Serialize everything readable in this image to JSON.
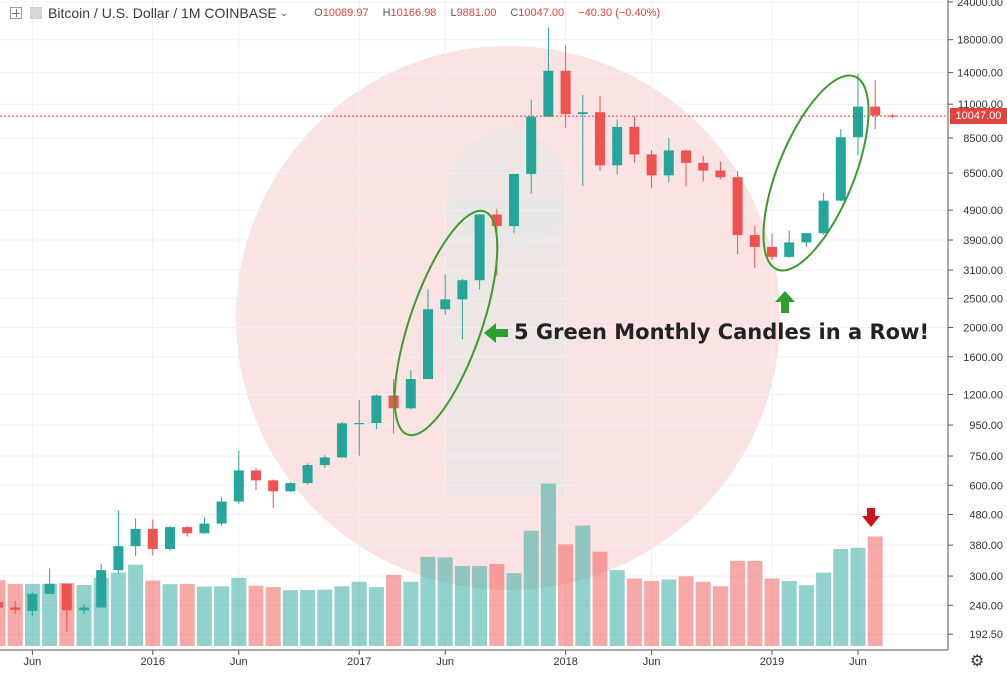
{
  "header": {
    "symbol": "Bitcoin / U.S. Dollar",
    "interval": "1M",
    "exchange": "COINBASE",
    "separator": "/",
    "o_label": "O",
    "o_value": "10089.97",
    "h_label": "H",
    "h_value": "10166.98",
    "l_label": "L",
    "l_value": "9881.00",
    "c_label": "C",
    "c_value": "10047.00",
    "change": "−40.30 (−0.40%)"
  },
  "annotation": "5 Green Monthly Candles in a Row!",
  "last_price_label": "10047.00",
  "colors": {
    "up": "#26a69a",
    "down": "#ef5350",
    "accent_green": "#2e9e2e",
    "arrow_red": "#d0141f",
    "last_price": "#e0443f"
  },
  "icons": {
    "crosshair": "plus-icon",
    "settings": "gear-icon",
    "chevron": "chevron-down-icon"
  },
  "chart_data": {
    "type": "candlestick",
    "title": "Bitcoin / U.S. Dollar  1M  COINBASE",
    "y_scale": "log",
    "ylim": [
      180,
      24000
    ],
    "grid": true,
    "y_ticks": [
      192.5,
      240,
      300,
      380,
      480,
      600,
      750,
      950,
      1200,
      1600,
      2000,
      2500,
      3100,
      3900,
      4900,
      6500,
      8500,
      11000,
      14000,
      18000,
      24000
    ],
    "y_tick_labels": [
      "192.50",
      "240.00",
      "300.00",
      "380.00",
      "480.00",
      "600.00",
      "750.00",
      "950.00",
      "1200.00",
      "1600.00",
      "2000.00",
      "2500.00",
      "3100.00",
      "3900.00",
      "4900.00",
      "6500.00",
      "8500.00",
      "11000.00",
      "14000.00",
      "18000.00",
      "24000.00"
    ],
    "x_ticks": [
      {
        "label": "Jun",
        "month": "2015-06"
      },
      {
        "label": "2016",
        "month": "2016-01"
      },
      {
        "label": "Jun",
        "month": "2016-06"
      },
      {
        "label": "2017",
        "month": "2017-01"
      },
      {
        "label": "Jun",
        "month": "2017-06"
      },
      {
        "label": "2018",
        "month": "2018-01"
      },
      {
        "label": "Jun",
        "month": "2018-06"
      },
      {
        "label": "2019",
        "month": "2019-01"
      },
      {
        "label": "Jun",
        "month": "2019-06"
      }
    ],
    "candles": [
      {
        "month": "2015-04",
        "o": 246,
        "h": 262,
        "l": 218,
        "c": 236,
        "vol": 251
      },
      {
        "month": "2015-05",
        "o": 236,
        "h": 248,
        "l": 225,
        "c": 232,
        "vol": 237
      },
      {
        "month": "2015-06",
        "o": 230,
        "h": 265,
        "l": 221,
        "c": 262,
        "vol": 237
      },
      {
        "month": "2015-07",
        "o": 262,
        "h": 318,
        "l": 262,
        "c": 283,
        "vol": 236
      },
      {
        "month": "2015-08",
        "o": 283,
        "h": 284,
        "l": 196,
        "c": 231,
        "vol": 240
      },
      {
        "month": "2015-09",
        "o": 231,
        "h": 242,
        "l": 224,
        "c": 236,
        "vol": 233
      },
      {
        "month": "2015-10",
        "o": 236,
        "h": 330,
        "l": 236,
        "c": 314,
        "vol": 260
      },
      {
        "month": "2015-11",
        "o": 314,
        "h": 495,
        "l": 306,
        "c": 377,
        "vol": 280
      },
      {
        "month": "2015-12",
        "o": 377,
        "h": 466,
        "l": 350,
        "c": 430,
        "vol": 310
      },
      {
        "month": "2016-01",
        "o": 430,
        "h": 462,
        "l": 351,
        "c": 369,
        "vol": 250
      },
      {
        "month": "2016-02",
        "o": 369,
        "h": 440,
        "l": 365,
        "c": 436,
        "vol": 236
      },
      {
        "month": "2016-03",
        "o": 436,
        "h": 439,
        "l": 406,
        "c": 416,
        "vol": 237
      },
      {
        "month": "2016-04",
        "o": 416,
        "h": 470,
        "l": 414,
        "c": 448,
        "vol": 227
      },
      {
        "month": "2016-05",
        "o": 448,
        "h": 550,
        "l": 440,
        "c": 530,
        "vol": 228
      },
      {
        "month": "2016-06",
        "o": 530,
        "h": 780,
        "l": 520,
        "c": 672,
        "vol": 260
      },
      {
        "month": "2016-07",
        "o": 672,
        "h": 684,
        "l": 580,
        "c": 623,
        "vol": 230
      },
      {
        "month": "2016-08",
        "o": 623,
        "h": 627,
        "l": 505,
        "c": 573,
        "vol": 225
      },
      {
        "month": "2016-09",
        "o": 573,
        "h": 616,
        "l": 570,
        "c": 610,
        "vol": 213
      },
      {
        "month": "2016-10",
        "o": 610,
        "h": 710,
        "l": 603,
        "c": 700,
        "vol": 214
      },
      {
        "month": "2016-11",
        "o": 700,
        "h": 755,
        "l": 685,
        "c": 742,
        "vol": 215
      },
      {
        "month": "2016-12",
        "o": 742,
        "h": 973,
        "l": 742,
        "c": 963,
        "vol": 228
      },
      {
        "month": "2017-01",
        "o": 963,
        "h": 1150,
        "l": 752,
        "c": 965,
        "vol": 245
      },
      {
        "month": "2017-02",
        "o": 965,
        "h": 1200,
        "l": 920,
        "c": 1190,
        "vol": 225
      },
      {
        "month": "2017-03",
        "o": 1190,
        "h": 1350,
        "l": 890,
        "c": 1080,
        "vol": 272
      },
      {
        "month": "2017-04",
        "o": 1080,
        "h": 1445,
        "l": 1070,
        "c": 1350,
        "vol": 245
      },
      {
        "month": "2017-05",
        "o": 1350,
        "h": 2680,
        "l": 1350,
        "c": 2300,
        "vol": 340
      },
      {
        "month": "2017-06",
        "o": 2300,
        "h": 3000,
        "l": 2200,
        "c": 2480,
        "vol": 338
      },
      {
        "month": "2017-07",
        "o": 2480,
        "h": 2900,
        "l": 1830,
        "c": 2870,
        "vol": 305
      },
      {
        "month": "2017-08",
        "o": 2870,
        "h": 4750,
        "l": 2680,
        "c": 4740,
        "vol": 305
      },
      {
        "month": "2017-09",
        "o": 4740,
        "h": 4950,
        "l": 2970,
        "c": 4340,
        "vol": 313
      },
      {
        "month": "2017-10",
        "o": 4340,
        "h": 6470,
        "l": 4120,
        "c": 6460,
        "vol": 278
      },
      {
        "month": "2017-11",
        "o": 6460,
        "h": 11400,
        "l": 5550,
        "c": 10000,
        "vol": 440
      },
      {
        "month": "2017-12",
        "o": 10000,
        "h": 19800,
        "l": 10000,
        "c": 14200,
        "vol": 620
      },
      {
        "month": "2018-01",
        "o": 14200,
        "h": 17200,
        "l": 9200,
        "c": 10200,
        "vol": 388
      },
      {
        "month": "2018-02",
        "o": 10200,
        "h": 11800,
        "l": 5900,
        "c": 10350,
        "vol": 460
      },
      {
        "month": "2018-03",
        "o": 10350,
        "h": 11700,
        "l": 6600,
        "c": 6900,
        "vol": 360
      },
      {
        "month": "2018-04",
        "o": 6900,
        "h": 9800,
        "l": 6430,
        "c": 9250,
        "vol": 290
      },
      {
        "month": "2018-05",
        "o": 9250,
        "h": 10000,
        "l": 7050,
        "c": 7500,
        "vol": 258
      },
      {
        "month": "2018-06",
        "o": 7500,
        "h": 7760,
        "l": 5800,
        "c": 6390,
        "vol": 248
      },
      {
        "month": "2018-07",
        "o": 6390,
        "h": 8500,
        "l": 6050,
        "c": 7730,
        "vol": 254
      },
      {
        "month": "2018-08",
        "o": 7730,
        "h": 7760,
        "l": 5880,
        "c": 7030,
        "vol": 266
      },
      {
        "month": "2018-09",
        "o": 7030,
        "h": 7420,
        "l": 6100,
        "c": 6630,
        "vol": 245
      },
      {
        "month": "2018-10",
        "o": 6630,
        "h": 7100,
        "l": 6200,
        "c": 6300,
        "vol": 228
      },
      {
        "month": "2018-11",
        "o": 6300,
        "h": 6600,
        "l": 3500,
        "c": 4050,
        "vol": 325
      },
      {
        "month": "2018-12",
        "o": 4050,
        "h": 4350,
        "l": 3150,
        "c": 3700,
        "vol": 325
      },
      {
        "month": "2019-01",
        "o": 3700,
        "h": 4100,
        "l": 3350,
        "c": 3430,
        "vol": 258
      },
      {
        "month": "2019-02",
        "o": 3430,
        "h": 4200,
        "l": 3400,
        "c": 3830,
        "vol": 248
      },
      {
        "month": "2019-03",
        "o": 3830,
        "h": 4120,
        "l": 3700,
        "c": 4110,
        "vol": 232
      },
      {
        "month": "2019-04",
        "o": 4110,
        "h": 5600,
        "l": 4060,
        "c": 5270,
        "vol": 280
      },
      {
        "month": "2019-05",
        "o": 5270,
        "h": 9100,
        "l": 5260,
        "c": 8550,
        "vol": 370
      },
      {
        "month": "2019-06",
        "o": 8550,
        "h": 13900,
        "l": 7450,
        "c": 10800,
        "vol": 375
      },
      {
        "month": "2019-07",
        "o": 10800,
        "h": 13200,
        "l": 9100,
        "c": 10090,
        "vol": 418
      },
      {
        "month": "2019-08",
        "o": 10090,
        "h": 10167,
        "l": 9881,
        "c": 10047,
        "vol": 0
      }
    ]
  }
}
